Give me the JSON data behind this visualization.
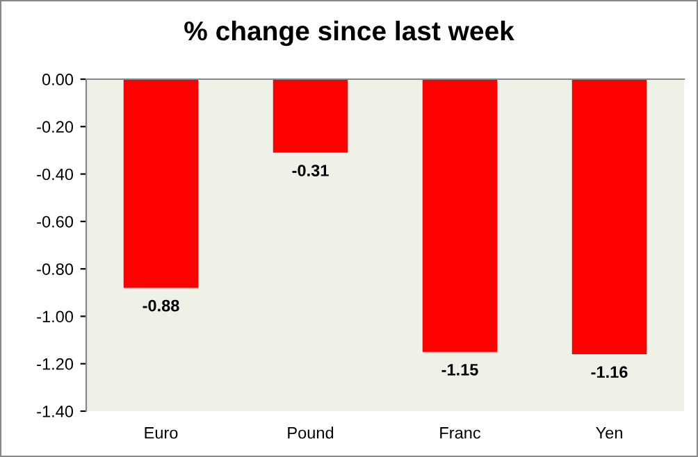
{
  "chart_data": {
    "type": "bar",
    "title": "% change since last week",
    "categories": [
      "Euro",
      "Pound",
      "Franc",
      "Yen"
    ],
    "values": [
      -0.88,
      -0.31,
      -1.15,
      -1.16
    ],
    "color": "#ff0000",
    "value_labels": [
      "-0.88",
      "-0.31",
      "-1.15",
      "-1.16"
    ],
    "ylim": [
      -1.4,
      0
    ],
    "yticks": [
      {
        "value": 0,
        "label": "0.00"
      },
      {
        "value": -0.2,
        "label": "-0.20"
      },
      {
        "value": -0.4,
        "label": "-0.40"
      },
      {
        "value": -0.6,
        "label": "-0.60"
      },
      {
        "value": -0.8,
        "label": "-0.80"
      },
      {
        "value": -1.0,
        "label": "-1.00"
      },
      {
        "value": -1.2,
        "label": "-1.20"
      },
      {
        "value": -1.4,
        "label": "-1.40"
      }
    ],
    "grid": false,
    "legend": false
  }
}
